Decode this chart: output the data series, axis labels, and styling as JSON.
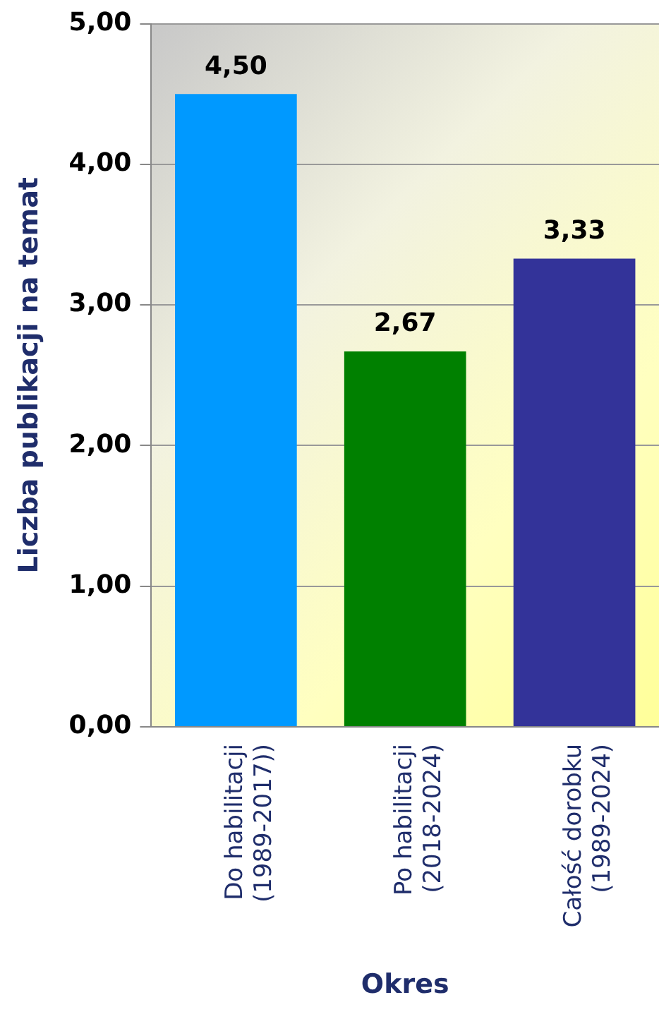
{
  "chart_data": {
    "type": "bar",
    "xlabel": "Okres",
    "ylabel": "Liczba publikacji na temat",
    "categories": [
      "Do habilitacji (1989-2017))",
      "Po habilitacji (2018-2024)",
      "Całość dorobku (1989-2024)"
    ],
    "values": [
      4.5,
      2.67,
      3.33
    ],
    "value_labels": [
      "4,50",
      "2,67",
      "3,33"
    ],
    "colors": [
      "#0099ff",
      "#008000",
      "#333399"
    ],
    "ylim": [
      0,
      5
    ],
    "yticks": [
      {
        "value": 0,
        "label": "0,00"
      },
      {
        "value": 1,
        "label": "1,00"
      },
      {
        "value": 2,
        "label": "2,00"
      },
      {
        "value": 3,
        "label": "3,00"
      },
      {
        "value": 4,
        "label": "4,00"
      },
      {
        "value": 5,
        "label": "5,00"
      }
    ],
    "grid": "y",
    "legend": false
  }
}
